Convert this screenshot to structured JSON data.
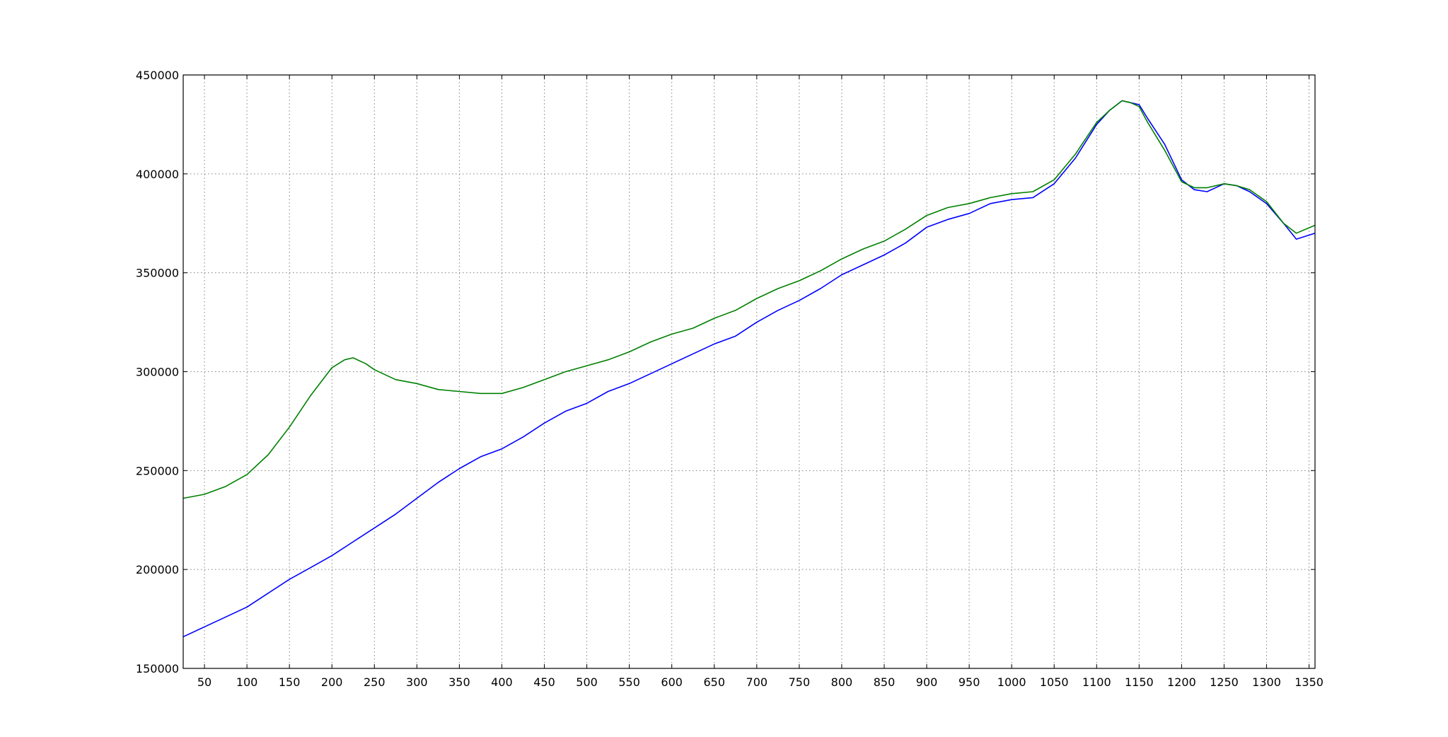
{
  "colors": {
    "series_blue": "#0000ff",
    "series_green": "#008000",
    "axes": "#000000",
    "grid": "#808080",
    "background": "#ffffff"
  },
  "chart_data": {
    "type": "line",
    "title": "",
    "xlabel": "",
    "ylabel": "",
    "xlim": [
      25,
      1357
    ],
    "ylim": [
      150000,
      450000
    ],
    "grid": true,
    "legend": "none",
    "xticks": [
      50,
      100,
      150,
      200,
      250,
      300,
      350,
      400,
      450,
      500,
      550,
      600,
      650,
      700,
      750,
      800,
      850,
      900,
      950,
      1000,
      1050,
      1100,
      1150,
      1200,
      1250,
      1300,
      1350
    ],
    "xtick_labels": [
      "50",
      "100",
      "150",
      "200",
      "250",
      "300",
      "350",
      "400",
      "450",
      "500",
      "550",
      "600",
      "650",
      "700",
      "750",
      "800",
      "850",
      "900",
      "950",
      "1000",
      "1050",
      "1100",
      "1150",
      "1200",
      "1250",
      "1300",
      "1350"
    ],
    "yticks": [
      150000,
      200000,
      250000,
      300000,
      350000,
      400000,
      450000
    ],
    "ytick_labels": [
      "150000",
      "200000",
      "250000",
      "300000",
      "350000",
      "400000",
      "450000"
    ],
    "series": [
      {
        "color": "#0000ff",
        "x": [
          25,
          50,
          75,
          100,
          125,
          150,
          175,
          200,
          225,
          250,
          275,
          300,
          325,
          350,
          375,
          400,
          425,
          450,
          475,
          500,
          525,
          550,
          575,
          600,
          625,
          650,
          675,
          700,
          725,
          750,
          775,
          800,
          825,
          850,
          875,
          900,
          925,
          950,
          975,
          1000,
          1025,
          1050,
          1075,
          1100,
          1115,
          1130,
          1140,
          1150,
          1160,
          1180,
          1200,
          1215,
          1230,
          1250,
          1265,
          1280,
          1300,
          1320,
          1335,
          1357
        ],
        "y": [
          166000,
          171000,
          176000,
          181000,
          188000,
          195000,
          201000,
          207000,
          214000,
          221000,
          228000,
          236000,
          244000,
          251000,
          257000,
          261000,
          267000,
          274000,
          280000,
          284000,
          290000,
          294000,
          299000,
          304000,
          309000,
          314000,
          318000,
          325000,
          331000,
          336000,
          342000,
          349000,
          354000,
          359000,
          365000,
          373000,
          377000,
          380000,
          385000,
          387000,
          388000,
          395000,
          408000,
          425000,
          432000,
          437000,
          436000,
          435000,
          428000,
          415000,
          397000,
          392000,
          391000,
          395000,
          394000,
          391000,
          385000,
          375000,
          367000,
          370000
        ]
      },
      {
        "color": "#008000",
        "x": [
          25,
          50,
          75,
          100,
          125,
          150,
          175,
          200,
          215,
          225,
          240,
          250,
          275,
          300,
          325,
          350,
          375,
          400,
          425,
          450,
          475,
          500,
          525,
          550,
          575,
          600,
          625,
          650,
          675,
          700,
          725,
          750,
          775,
          800,
          825,
          850,
          875,
          900,
          925,
          950,
          975,
          1000,
          1025,
          1050,
          1075,
          1100,
          1115,
          1130,
          1140,
          1150,
          1160,
          1180,
          1200,
          1215,
          1230,
          1250,
          1265,
          1280,
          1300,
          1320,
          1335,
          1357
        ],
        "y": [
          236000,
          238000,
          242000,
          248000,
          258000,
          272000,
          288000,
          302000,
          306000,
          307000,
          304000,
          301000,
          296000,
          294000,
          291000,
          290000,
          289000,
          289000,
          292000,
          296000,
          300000,
          303000,
          306000,
          310000,
          315000,
          319000,
          322000,
          327000,
          331000,
          337000,
          342000,
          346000,
          351000,
          357000,
          362000,
          366000,
          372000,
          379000,
          383000,
          385000,
          388000,
          390000,
          391000,
          397000,
          410000,
          426000,
          432000,
          437000,
          436000,
          434000,
          426000,
          412000,
          396000,
          393000,
          393000,
          395000,
          394000,
          392000,
          386000,
          375000,
          370000,
          374000
        ]
      }
    ]
  }
}
